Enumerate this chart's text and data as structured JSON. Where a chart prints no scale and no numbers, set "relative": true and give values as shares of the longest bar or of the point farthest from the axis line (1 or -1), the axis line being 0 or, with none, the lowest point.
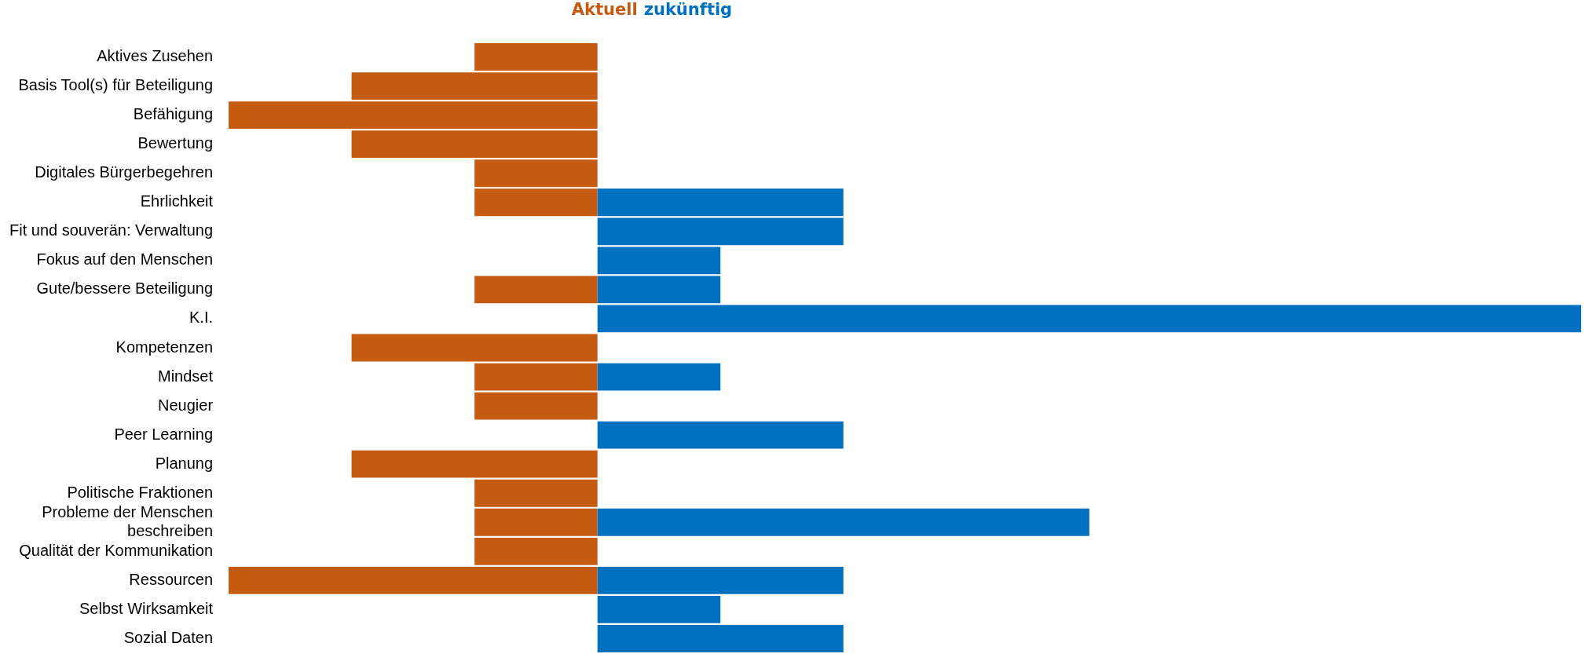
{
  "chart_data": {
    "type": "bar",
    "orientation": "horizontal",
    "stacked": true,
    "relative": true,
    "legend": "top",
    "categories": [
      "Aktives Zusehen",
      "Basis Tool(s) für Beteiligung",
      "Befähigung",
      "Bewertung",
      "Digitales Bürgerbegehren",
      "Ehrlichkeit",
      "Fit und souverän: Verwaltung",
      "Fokus auf den Menschen",
      "Gute/bessere Beteiligung",
      "K.I.",
      "Kompetenzen",
      "Mindset",
      "Neugier",
      "Peer Learning",
      "Planung",
      "Politische Fraktionen",
      "Probleme der Menschen beschreiben",
      "Qualität der Kommunikation",
      "Ressourcen",
      "Selbst Wirksamkeit",
      "Sozial Daten"
    ],
    "series": [
      {
        "name": "Aktuell",
        "color": "#c55a11",
        "values": [
          -0.125,
          -0.25,
          -0.375,
          -0.25,
          -0.125,
          -0.125,
          0,
          0,
          -0.125,
          0,
          -0.25,
          -0.125,
          -0.125,
          0,
          -0.25,
          -0.125,
          -0.125,
          -0.125,
          -0.375,
          0,
          0
        ]
      },
      {
        "name": "zukünftig",
        "color": "#0070c0",
        "values": [
          0,
          0,
          0,
          0,
          0,
          0.25,
          0.25,
          0.125,
          0.125,
          1,
          0,
          0.125,
          0,
          0.25,
          0,
          0,
          0.5,
          0,
          0.25,
          0.125,
          0.25
        ]
      }
    ]
  }
}
